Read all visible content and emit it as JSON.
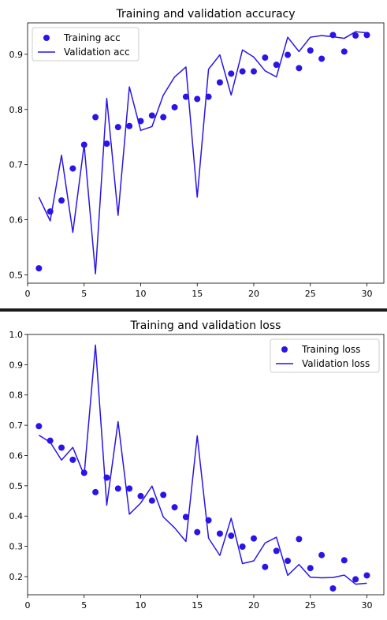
{
  "chart_data": [
    {
      "type": "line",
      "title": "Training and validation accuracy",
      "xlabel": "",
      "ylabel": "",
      "xlim": [
        0,
        31.5
      ],
      "ylim": [
        0.485,
        0.957
      ],
      "xticks": [
        0,
        5,
        10,
        15,
        20,
        25,
        30
      ],
      "yticks": [
        0.5,
        0.6,
        0.7,
        0.8,
        0.9
      ],
      "ytick_format": 1,
      "legend": "top-left",
      "x": [
        1,
        2,
        3,
        4,
        5,
        6,
        7,
        8,
        9,
        10,
        11,
        12,
        13,
        14,
        15,
        16,
        17,
        18,
        19,
        20,
        21,
        22,
        23,
        24,
        25,
        26,
        27,
        28,
        29,
        30
      ],
      "series": [
        {
          "name": "Training acc",
          "style": "points",
          "color": "#2a14e8",
          "values": [
            0.512,
            0.615,
            0.635,
            0.693,
            0.736,
            0.786,
            0.738,
            0.768,
            0.77,
            0.779,
            0.789,
            0.786,
            0.804,
            0.823,
            0.819,
            0.823,
            0.849,
            0.865,
            0.869,
            0.869,
            0.894,
            0.881,
            0.899,
            0.875,
            0.907,
            0.892,
            0.935,
            0.905,
            0.934,
            0.935
          ]
        },
        {
          "name": "Validation acc",
          "style": "line",
          "color": "#2a14e8",
          "values": [
            0.641,
            0.598,
            0.717,
            0.577,
            0.736,
            0.502,
            0.82,
            0.608,
            0.841,
            0.762,
            0.769,
            0.826,
            0.859,
            0.877,
            0.641,
            0.873,
            0.899,
            0.826,
            0.908,
            0.895,
            0.87,
            0.859,
            0.931,
            0.905,
            0.931,
            0.934,
            0.932,
            0.929,
            0.941,
            0.939
          ]
        }
      ]
    },
    {
      "type": "line",
      "title": "Training and validation loss",
      "xlabel": "",
      "ylabel": "",
      "xlim": [
        0,
        31.5
      ],
      "ylim": [
        0.14,
        1.0
      ],
      "xticks": [
        0,
        5,
        10,
        15,
        20,
        25,
        30
      ],
      "yticks": [
        0.2,
        0.3,
        0.4,
        0.5,
        0.6,
        0.7,
        0.8,
        0.9,
        1.0
      ],
      "ytick_format": 1,
      "legend": "top-right",
      "x": [
        1,
        2,
        3,
        4,
        5,
        6,
        7,
        8,
        9,
        10,
        11,
        12,
        13,
        14,
        15,
        16,
        17,
        18,
        19,
        20,
        21,
        22,
        23,
        24,
        25,
        26,
        27,
        28,
        29,
        30
      ],
      "series": [
        {
          "name": "Training loss",
          "style": "points",
          "color": "#2a14e8",
          "values": [
            0.697,
            0.649,
            0.626,
            0.586,
            0.543,
            0.479,
            0.527,
            0.491,
            0.491,
            0.466,
            0.451,
            0.47,
            0.429,
            0.397,
            0.347,
            0.386,
            0.342,
            0.335,
            0.299,
            0.326,
            0.232,
            0.285,
            0.252,
            0.324,
            0.228,
            0.271,
            0.161,
            0.254,
            0.191,
            0.204
          ]
        },
        {
          "name": "Validation loss",
          "style": "line",
          "color": "#2a14e8",
          "values": [
            0.667,
            0.644,
            0.585,
            0.627,
            0.535,
            0.965,
            0.436,
            0.712,
            0.406,
            0.443,
            0.499,
            0.397,
            0.361,
            0.316,
            0.665,
            0.327,
            0.27,
            0.393,
            0.243,
            0.252,
            0.311,
            0.33,
            0.204,
            0.24,
            0.198,
            0.196,
            0.197,
            0.205,
            0.175,
            0.178
          ]
        }
      ]
    }
  ]
}
